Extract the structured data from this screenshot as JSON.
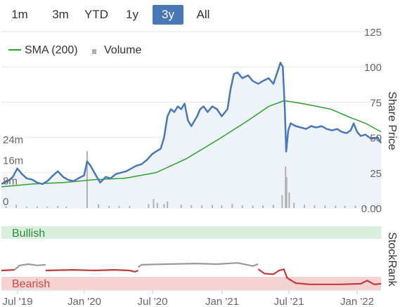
{
  "range_selector": {
    "buttons": [
      {
        "label": "1m",
        "active": false
      },
      {
        "label": "3m",
        "active": false
      },
      {
        "label": "YTD",
        "active": false
      },
      {
        "label": "1y",
        "active": false
      },
      {
        "label": "3y",
        "active": true
      },
      {
        "label": "All",
        "active": false
      }
    ],
    "active_color": "#4a77b8"
  },
  "chart_data": [
    {
      "type": "line",
      "x_ticks": [
        "Jul '19",
        "Jan '20",
        "Jul '20",
        "Jan '21",
        "Jul '21",
        "Jan '22"
      ],
      "xlim": [
        "2019-06-01",
        "2022-06-30"
      ],
      "ylabel": "Share Price",
      "ylim": [
        0,
        125
      ],
      "y_ticks": [
        "0.00",
        "25",
        "50",
        "75",
        "100",
        "125"
      ],
      "volume_axis": {
        "ylim": [
          0,
          30
        ],
        "ticks": [
          "0",
          "8m",
          "16m",
          "24m"
        ]
      },
      "legend": {
        "placement": "top-left",
        "entries": [
          {
            "label": "SMA (200)",
            "color": "#2ea32e",
            "marker": "line"
          },
          {
            "label": "Volume",
            "color": "#b0b0b0",
            "marker": "square"
          }
        ]
      },
      "grid": true,
      "series": [
        {
          "name": "",
          "color": "#4a77b8",
          "fill": "#eef2f9",
          "points": [
            [
              "2019-06-01",
              17
            ],
            [
              "2019-06-20",
              19
            ],
            [
              "2019-07-05",
              22
            ],
            [
              "2019-07-18",
              28
            ],
            [
              "2019-08-01",
              24
            ],
            [
              "2019-08-15",
              21
            ],
            [
              "2019-09-01",
              20
            ],
            [
              "2019-09-15",
              18
            ],
            [
              "2019-10-01",
              17
            ],
            [
              "2019-10-15",
              19
            ],
            [
              "2019-11-01",
              23
            ],
            [
              "2019-11-15",
              26
            ],
            [
              "2019-12-01",
              22
            ],
            [
              "2019-12-15",
              20
            ],
            [
              "2020-01-01",
              19
            ],
            [
              "2020-01-15",
              21
            ],
            [
              "2020-02-01",
              23
            ],
            [
              "2020-02-10",
              33
            ],
            [
              "2020-02-20",
              30
            ],
            [
              "2020-03-05",
              24
            ],
            [
              "2020-03-20",
              18
            ],
            [
              "2020-04-05",
              22
            ],
            [
              "2020-04-20",
              21
            ],
            [
              "2020-05-05",
              24
            ],
            [
              "2020-05-20",
              25
            ],
            [
              "2020-06-05",
              26
            ],
            [
              "2020-06-20",
              28
            ],
            [
              "2020-07-05",
              30
            ],
            [
              "2020-07-20",
              31
            ],
            [
              "2020-08-05",
              34
            ],
            [
              "2020-08-20",
              38
            ],
            [
              "2020-09-01",
              40
            ],
            [
              "2020-09-15",
              42
            ],
            [
              "2020-09-25",
              50
            ],
            [
              "2020-10-05",
              65
            ],
            [
              "2020-10-15",
              70
            ],
            [
              "2020-10-25",
              68
            ],
            [
              "2020-11-05",
              72
            ],
            [
              "2020-11-15",
              70
            ],
            [
              "2020-11-25",
              74
            ],
            [
              "2020-12-05",
              62
            ],
            [
              "2020-12-15",
              58
            ],
            [
              "2021-01-01",
              65
            ],
            [
              "2021-01-10",
              70
            ],
            [
              "2021-01-20",
              72
            ],
            [
              "2021-02-01",
              68
            ],
            [
              "2021-02-15",
              72
            ],
            [
              "2021-03-01",
              70
            ],
            [
              "2021-03-15",
              65
            ],
            [
              "2021-04-01",
              70
            ],
            [
              "2021-04-10",
              84
            ],
            [
              "2021-04-20",
              95
            ],
            [
              "2021-05-01",
              96
            ],
            [
              "2021-05-15",
              92
            ],
            [
              "2021-06-01",
              94
            ],
            [
              "2021-06-15",
              90
            ],
            [
              "2021-07-01",
              88
            ],
            [
              "2021-07-15",
              90
            ],
            [
              "2021-08-01",
              92
            ],
            [
              "2021-08-15",
              88
            ],
            [
              "2021-08-25",
              95
            ],
            [
              "2021-09-05",
              103
            ],
            [
              "2021-09-12",
              100
            ],
            [
              "2021-09-18",
              70
            ],
            [
              "2021-09-22",
              40
            ],
            [
              "2021-09-28",
              55
            ],
            [
              "2021-10-05",
              60
            ],
            [
              "2021-10-20",
              58
            ],
            [
              "2021-11-05",
              57
            ],
            [
              "2021-11-20",
              56
            ],
            [
              "2021-12-05",
              58
            ],
            [
              "2021-12-20",
              57
            ],
            [
              "2022-01-05",
              58
            ],
            [
              "2022-01-20",
              56
            ],
            [
              "2022-02-05",
              55
            ],
            [
              "2022-02-20",
              56
            ],
            [
              "2022-03-05",
              54
            ],
            [
              "2022-03-20",
              53
            ],
            [
              "2022-04-01",
              55
            ],
            [
              "2022-04-10",
              60
            ],
            [
              "2022-04-20",
              54
            ],
            [
              "2022-05-01",
              51
            ],
            [
              "2022-05-15",
              52
            ],
            [
              "2022-06-01",
              49
            ],
            [
              "2022-06-20",
              50
            ],
            [
              "2022-06-30",
              46
            ]
          ]
        },
        {
          "name": "SMA (200)",
          "color": "#2ea32e",
          "points": [
            [
              "2019-06-01",
              15
            ],
            [
              "2019-09-01",
              17
            ],
            [
              "2019-12-01",
              18
            ],
            [
              "2020-03-01",
              20
            ],
            [
              "2020-06-01",
              21
            ],
            [
              "2020-09-01",
              25
            ],
            [
              "2020-12-01",
              35
            ],
            [
              "2021-03-01",
              48
            ],
            [
              "2021-06-01",
              62
            ],
            [
              "2021-08-01",
              72
            ],
            [
              "2021-09-15",
              76
            ],
            [
              "2021-10-15",
              75
            ],
            [
              "2021-12-01",
              73
            ],
            [
              "2022-02-01",
              70
            ],
            [
              "2022-04-01",
              64
            ],
            [
              "2022-05-15",
              60
            ],
            [
              "2022-06-30",
              54
            ]
          ]
        },
        {
          "name": "Volume",
          "type": "bar",
          "color": "#b0b0b0",
          "unit": "m",
          "points": [
            [
              "2019-06-15",
              0.6
            ],
            [
              "2019-07-15",
              1.2
            ],
            [
              "2019-08-15",
              0.5
            ],
            [
              "2019-09-15",
              0.6
            ],
            [
              "2019-10-15",
              0.5
            ],
            [
              "2019-11-15",
              0.8
            ],
            [
              "2019-12-10",
              0.6
            ],
            [
              "2020-02-10",
              22
            ],
            [
              "2020-03-15",
              1.4
            ],
            [
              "2020-04-15",
              0.8
            ],
            [
              "2020-05-15",
              0.7
            ],
            [
              "2020-06-15",
              0.8
            ],
            [
              "2020-08-10",
              1.5
            ],
            [
              "2020-08-25",
              3.5
            ],
            [
              "2020-09-05",
              2.0
            ],
            [
              "2020-09-25",
              1.5
            ],
            [
              "2020-10-05",
              2.5
            ],
            [
              "2020-11-15",
              1.2
            ],
            [
              "2020-12-15",
              1.0
            ],
            [
              "2021-01-15",
              1.0
            ],
            [
              "2021-02-15",
              1.2
            ],
            [
              "2021-03-15",
              1.0
            ],
            [
              "2021-04-15",
              1.6
            ],
            [
              "2021-05-15",
              1.0
            ],
            [
              "2021-06-15",
              0.9
            ],
            [
              "2021-07-15",
              0.9
            ],
            [
              "2021-08-15",
              1.2
            ],
            [
              "2021-09-10",
              5.0
            ],
            [
              "2021-09-20",
              16.0
            ],
            [
              "2021-09-23",
              12.0
            ],
            [
              "2021-10-01",
              6.0
            ],
            [
              "2021-10-15",
              2.0
            ],
            [
              "2021-11-15",
              1.2
            ],
            [
              "2021-12-15",
              1.0
            ],
            [
              "2022-01-15",
              1.0
            ],
            [
              "2022-02-15",
              0.9
            ],
            [
              "2022-03-15",
              0.8
            ],
            [
              "2022-04-15",
              0.9
            ],
            [
              "2022-05-15",
              0.8
            ],
            [
              "2022-06-15",
              0.7
            ]
          ]
        }
      ]
    },
    {
      "type": "line",
      "ylabel": "StockRank",
      "ylim": [
        0,
        100
      ],
      "bands": [
        {
          "label": "Bullish",
          "from": 80,
          "to": 100,
          "color": "#d8efdd",
          "text_color": "#2e8b3c"
        },
        {
          "label": "Bearish",
          "from": 0,
          "to": 20,
          "color": "#f5d3d3",
          "text_color": "#c94a4a"
        }
      ],
      "segments": [
        {
          "state": "bearish",
          "color": "#c23b3b",
          "points": [
            [
              "2019-06-01",
              30
            ],
            [
              "2019-07-10",
              31
            ]
          ]
        },
        {
          "state": "neutral",
          "color": "#9a9a9a",
          "points": [
            [
              "2019-07-10",
              31
            ],
            [
              "2019-07-25",
              38
            ],
            [
              "2019-08-20",
              40
            ],
            [
              "2019-09-15",
              38
            ],
            [
              "2019-10-10",
              39
            ]
          ]
        },
        {
          "state": "bearish",
          "color": "#c23b3b",
          "points": [
            [
              "2019-10-10",
              30
            ],
            [
              "2020-01-01",
              31
            ],
            [
              "2020-03-01",
              30
            ],
            [
              "2020-05-01",
              31
            ],
            [
              "2020-06-15",
              30
            ],
            [
              "2020-07-01",
              28
            ],
            [
              "2020-07-10",
              30
            ]
          ]
        },
        {
          "state": "neutral",
          "color": "#9a9a9a",
          "points": [
            [
              "2020-07-10",
              35
            ],
            [
              "2020-07-20",
              39
            ],
            [
              "2020-10-01",
              40
            ],
            [
              "2021-01-01",
              41
            ],
            [
              "2021-03-01",
              40
            ],
            [
              "2021-05-01",
              42
            ],
            [
              "2021-06-15",
              37
            ],
            [
              "2021-07-01",
              40
            ]
          ]
        },
        {
          "state": "bearish",
          "color": "#c23b3b",
          "points": [
            [
              "2021-07-01",
              32
            ],
            [
              "2021-07-20",
              25
            ],
            [
              "2021-08-15",
              24
            ],
            [
              "2021-09-01",
              30
            ],
            [
              "2021-09-15",
              32
            ],
            [
              "2021-09-25",
              18
            ],
            [
              "2021-10-20",
              10
            ],
            [
              "2021-12-01",
              8
            ],
            [
              "2022-03-01",
              8
            ],
            [
              "2022-05-01",
              9
            ],
            [
              "2022-05-20",
              14
            ],
            [
              "2022-06-10",
              8
            ],
            [
              "2022-06-30",
              9
            ]
          ]
        }
      ]
    }
  ]
}
